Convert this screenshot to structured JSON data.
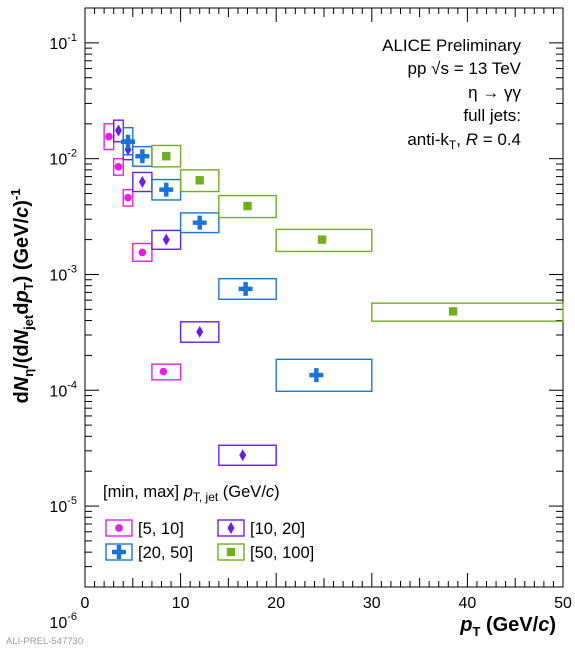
{
  "chart_data": {
    "type": "scatter",
    "x_axis": {
      "label_main": "p",
      "label_sub": "T",
      "label_unit": " (GeV/",
      "label_unit_c": "c",
      "label_unit_end": ")",
      "range": [
        0,
        50
      ],
      "ticks": [
        0,
        10,
        20,
        30,
        40,
        50
      ],
      "tick_labels": [
        "0",
        "10",
        "20",
        "30",
        "40",
        "50"
      ],
      "scale": "linear"
    },
    "y_axis": {
      "label_parts": [
        "d",
        "N",
        "η",
        "/(d",
        "N",
        "jet",
        "d",
        "p",
        "T",
        ") (GeV/",
        "c",
        ")",
        "-1"
      ],
      "range": [
        2e-06,
        0.2
      ],
      "scale": "log",
      "decades": [
        -6,
        -5,
        -4,
        -3,
        -2,
        -1
      ],
      "tick_base": "10",
      "tick_exponents": [
        "-6",
        "-5",
        "-4",
        "-3",
        "-2",
        "-1"
      ]
    },
    "grid": false,
    "annotations": [
      {
        "text": "ALICE Preliminary"
      },
      {
        "text_pre": "pp ",
        "sqrt_s": "√s",
        "text_post": " = 13 TeV"
      },
      {
        "text": "η → γγ"
      },
      {
        "text": "full jets:"
      },
      {
        "text_pre": "anti-k",
        "sub": "T",
        "text_mid": ", ",
        "italic": "R",
        "text_post": " = 0.4"
      }
    ],
    "legend": {
      "title_pre": "[min, max] ",
      "title_p": "p",
      "title_sub": "T, jet",
      "title_unit": " (GeV/",
      "title_c": "c",
      "title_end": ")",
      "placement": "bottom-left"
    },
    "series": [
      {
        "name": "[5, 10]",
        "marker": "circle",
        "color": "#E61EE6",
        "points": [
          {
            "x": 2.5,
            "y": 0.0155,
            "xlo": 2.0,
            "xhi": 3.0,
            "ylo": 0.012,
            "yhi": 0.02
          },
          {
            "x": 3.5,
            "y": 0.0085,
            "xlo": 3.0,
            "xhi": 4.0,
            "ylo": 0.0072,
            "yhi": 0.01
          },
          {
            "x": 4.5,
            "y": 0.0046,
            "xlo": 4.0,
            "xhi": 5.0,
            "ylo": 0.0039,
            "yhi": 0.0054
          },
          {
            "x": 6.0,
            "y": 0.00155,
            "xlo": 5.0,
            "xhi": 7.0,
            "ylo": 0.0013,
            "yhi": 0.00185
          },
          {
            "x": 8.2,
            "y": 0.000145,
            "xlo": 7.0,
            "xhi": 10.0,
            "ylo": 0.000123,
            "yhi": 0.000168
          }
        ]
      },
      {
        "name": "[10, 20]",
        "marker": "diamond",
        "color": "#6A1FE0",
        "points": [
          {
            "x": 3.5,
            "y": 0.0175,
            "xlo": 3.0,
            "xhi": 4.0,
            "ylo": 0.014,
            "yhi": 0.0215
          },
          {
            "x": 4.5,
            "y": 0.012,
            "xlo": 4.0,
            "xhi": 5.0,
            "ylo": 0.0098,
            "yhi": 0.0145
          },
          {
            "x": 6.0,
            "y": 0.0063,
            "xlo": 5.0,
            "xhi": 7.0,
            "ylo": 0.0052,
            "yhi": 0.0076
          },
          {
            "x": 8.5,
            "y": 0.002,
            "xlo": 7.0,
            "xhi": 10.0,
            "ylo": 0.00165,
            "yhi": 0.0024
          },
          {
            "x": 12.0,
            "y": 0.00032,
            "xlo": 10.0,
            "xhi": 14.0,
            "ylo": 0.00026,
            "yhi": 0.00039
          },
          {
            "x": 16.5,
            "y": 2.75e-05,
            "xlo": 14.0,
            "xhi": 20.0,
            "ylo": 2.25e-05,
            "yhi": 3.35e-05
          }
        ]
      },
      {
        "name": "[20, 50]",
        "marker": "cross",
        "color": "#1A74D6",
        "points": [
          {
            "x": 4.5,
            "y": 0.014,
            "xlo": 4.0,
            "xhi": 5.0,
            "ylo": 0.0108,
            "yhi": 0.0185
          },
          {
            "x": 6.0,
            "y": 0.0105,
            "xlo": 5.0,
            "xhi": 7.0,
            "ylo": 0.0086,
            "yhi": 0.0127
          },
          {
            "x": 8.5,
            "y": 0.0054,
            "xlo": 7.0,
            "xhi": 10.0,
            "ylo": 0.0044,
            "yhi": 0.0066
          },
          {
            "x": 12.0,
            "y": 0.0028,
            "xlo": 10.0,
            "xhi": 14.0,
            "ylo": 0.0023,
            "yhi": 0.0034
          },
          {
            "x": 16.8,
            "y": 0.00075,
            "xlo": 14.0,
            "xhi": 20.0,
            "ylo": 0.00061,
            "yhi": 0.00092
          },
          {
            "x": 24.2,
            "y": 0.000135,
            "xlo": 20.0,
            "xhi": 30.0,
            "ylo": 9.8e-05,
            "yhi": 0.000185
          }
        ]
      },
      {
        "name": "[50, 100]",
        "marker": "square",
        "color": "#6FAE1E",
        "points": [
          {
            "x": 8.5,
            "y": 0.0105,
            "xlo": 7.0,
            "xhi": 10.0,
            "ylo": 0.0085,
            "yhi": 0.013
          },
          {
            "x": 12.0,
            "y": 0.0065,
            "xlo": 10.0,
            "xhi": 14.0,
            "ylo": 0.0052,
            "yhi": 0.008
          },
          {
            "x": 17.0,
            "y": 0.0039,
            "xlo": 14.0,
            "xhi": 20.0,
            "ylo": 0.0031,
            "yhi": 0.0048
          },
          {
            "x": 24.8,
            "y": 0.002,
            "xlo": 20.0,
            "xhi": 30.0,
            "ylo": 0.00158,
            "yhi": 0.00245
          },
          {
            "x": 38.5,
            "y": 0.00048,
            "xlo": 30.0,
            "xhi": 50.0,
            "ylo": 0.000395,
            "yhi": 0.000565
          }
        ]
      }
    ]
  },
  "footer": {
    "text": "ALI-PREL-547730"
  }
}
